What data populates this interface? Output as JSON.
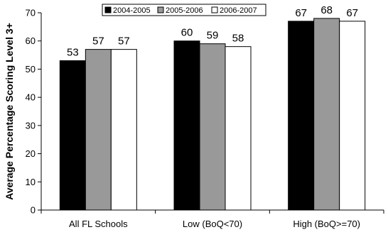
{
  "chart_data": {
    "type": "bar",
    "categories": [
      "All FL Schools",
      "Low (BoQ<70)",
      "High (BoQ>=70)"
    ],
    "series": [
      {
        "name": "2004-2005",
        "values": [
          53,
          60,
          67
        ],
        "color": "#000000"
      },
      {
        "name": "2005-2006",
        "values": [
          57,
          59,
          68
        ],
        "color": "#999999"
      },
      {
        "name": "2006-2007",
        "values": [
          57,
          58,
          67
        ],
        "color": "#ffffff"
      }
    ],
    "ylabel": "Average Percentage Scoring Level 3+",
    "ylim": [
      0,
      70
    ],
    "yticks": [
      0,
      10,
      20,
      30,
      40,
      50,
      60,
      70
    ],
    "grid": false,
    "legend_position": "top-center"
  }
}
